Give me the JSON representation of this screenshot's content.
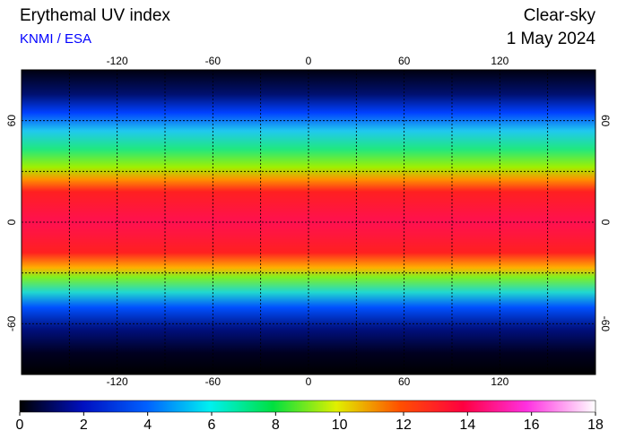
{
  "title": "Erythemal UV index",
  "source": "KNMI / ESA",
  "subtitle": "Clear-sky",
  "date": "1 May 2024",
  "map": {
    "lon_range": [
      -180,
      180
    ],
    "lat_range": [
      -90,
      90
    ],
    "lon_ticks": [
      -120,
      -60,
      0,
      60,
      120
    ],
    "lat_ticks": [
      60,
      0,
      -60
    ]
  },
  "colorbar": {
    "range": [
      0,
      18
    ],
    "ticks": [
      0,
      2,
      4,
      6,
      8,
      10,
      12,
      14,
      16,
      18
    ]
  }
}
